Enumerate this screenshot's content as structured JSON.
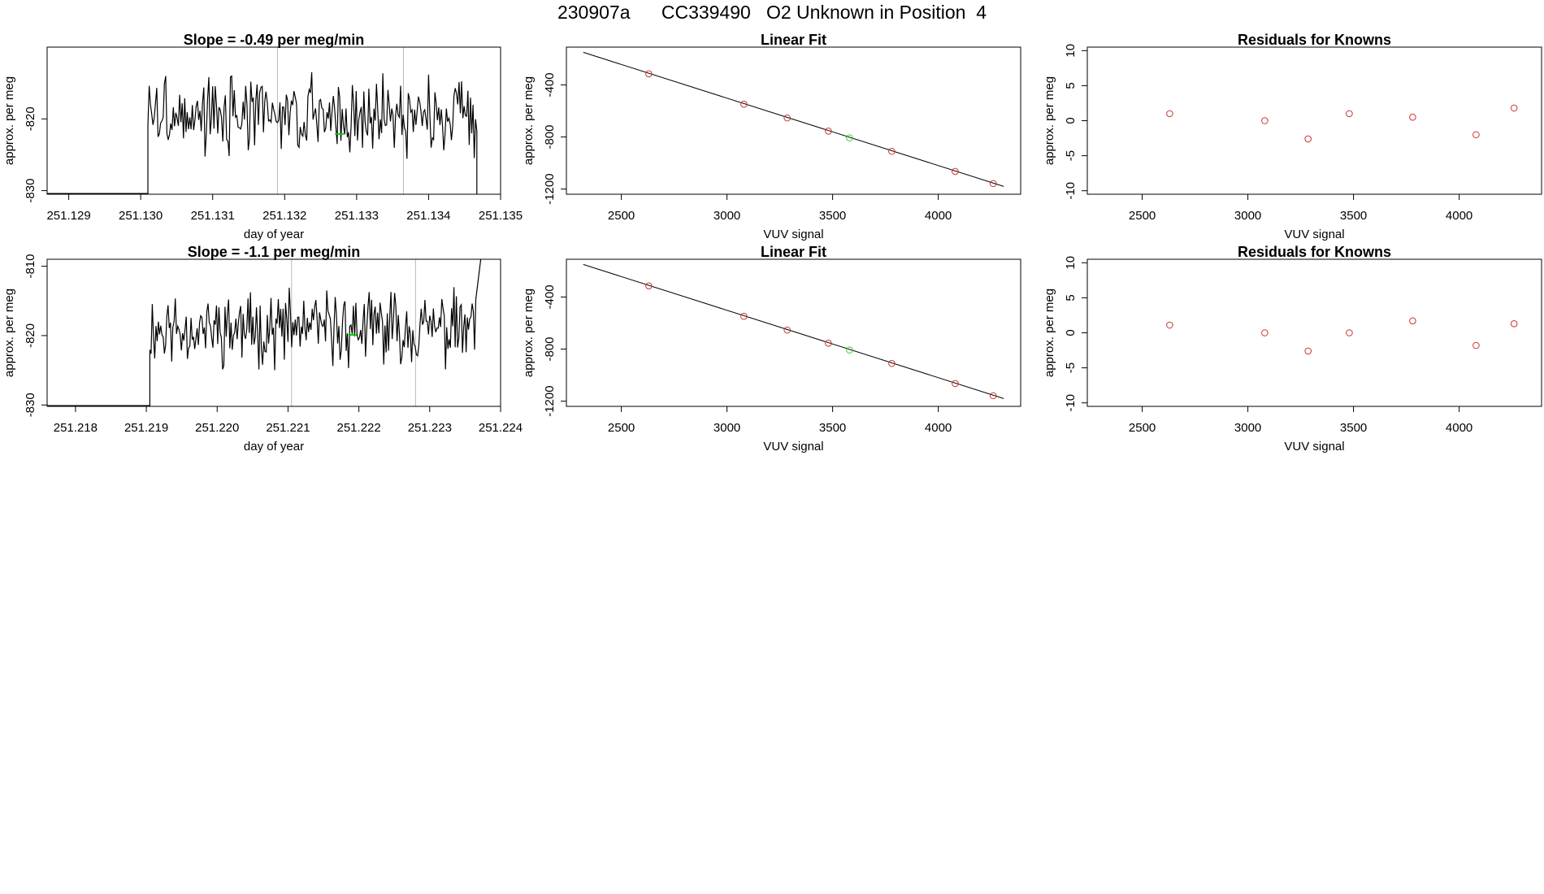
{
  "figure": {
    "title": "230907a      CC339490   O2 Unknown in Position  4"
  },
  "chart_data": [
    {
      "type": "line",
      "panel": "row1-timeseries",
      "title": "Slope =  -0.49  per meg/min",
      "xlabel": "day of year",
      "ylabel": "approx. per meg",
      "xlim": [
        251.1287,
        251.135
      ],
      "ylim": [
        -830.5,
        -810.0
      ],
      "xticks": [
        "251.129",
        "251.130",
        "251.131",
        "251.132",
        "251.133",
        "251.134",
        "251.135"
      ],
      "yticks": [
        "-830",
        "-820"
      ],
      "vlines": [
        251.1319,
        251.13365
      ],
      "noise_seed": 3,
      "series": [
        {
          "name": "signal",
          "color": "#000000",
          "x_start": 251.1301,
          "x_end": 251.13467,
          "n": 260,
          "base": -819.5,
          "noise": 4.5,
          "drop": {
            "x": 251.13467,
            "y": -833
          }
        },
        {
          "name": "unknown-mean",
          "color": "#00cc00",
          "x": [
            251.1327,
            251.13282
          ],
          "y": [
            -822.1,
            -822.1
          ]
        }
      ]
    },
    {
      "type": "scatter",
      "panel": "row1-fit",
      "title": "Linear Fit",
      "xlabel": "VUV signal",
      "ylabel": "approx. per meg",
      "xlim": [
        2240,
        4390
      ],
      "ylim": [
        -1240,
        -110
      ],
      "xticks": [
        "2500",
        "3000",
        "3500",
        "4000"
      ],
      "yticks": [
        "-1200",
        "-800",
        "-400"
      ],
      "fit_line": {
        "x": [
          2320,
          4310
        ],
        "y": [
          -150,
          -1180
        ]
      },
      "series": [
        {
          "name": "knowns",
          "color": "#cc3333",
          "x": [
            2630,
            3080,
            3285,
            3480,
            3780,
            4080,
            4260
          ],
          "y": [
            -315,
            -548,
            -654,
            -755,
            -910,
            -1065,
            -1158
          ]
        },
        {
          "name": "unknown",
          "color": "#33cc33",
          "x": [
            3580
          ],
          "y": [
            -807
          ]
        }
      ]
    },
    {
      "type": "scatter",
      "panel": "row1-residuals",
      "title": "Residuals for Knowns",
      "xlabel": "VUV signal",
      "ylabel": "approx. per meg",
      "xlim": [
        2240,
        4390
      ],
      "ylim": [
        -10.5,
        10.5
      ],
      "xticks": [
        "2500",
        "3000",
        "3500",
        "4000"
      ],
      "yticks": [
        "-10",
        "-5",
        "0",
        "5",
        "10"
      ],
      "series": [
        {
          "name": "residuals",
          "color": "#cc3333",
          "x": [
            2630,
            3080,
            3285,
            3480,
            3780,
            4080,
            4260
          ],
          "y": [
            1.0,
            0.0,
            -2.6,
            1.0,
            0.5,
            -2.0,
            1.8
          ]
        }
      ]
    },
    {
      "type": "line",
      "panel": "row2-timeseries",
      "title": "Slope =  -1.1  per meg/min",
      "xlabel": "day of year",
      "ylabel": "approx. per meg",
      "xlim": [
        251.2176,
        251.224
      ],
      "ylim": [
        -830.2,
        -809.0
      ],
      "xticks": [
        "251.218",
        "251.219",
        "251.220",
        "251.221",
        "251.222",
        "251.223",
        "251.224"
      ],
      "yticks": [
        "-830",
        "-820",
        "-810"
      ],
      "vlines": [
        251.22105,
        251.2228
      ],
      "noise_seed": 11,
      "series": [
        {
          "name": "signal",
          "color": "#000000",
          "x_start": 251.21905,
          "x_end": 251.22365,
          "n": 270,
          "base": -819.0,
          "noise": 4.5,
          "rise": {
            "x": 251.22372,
            "y": -809
          }
        },
        {
          "name": "unknown-mean",
          "color": "#00cc00",
          "x": [
            251.22185,
            251.22197
          ],
          "y": [
            -819.9,
            -819.9
          ]
        }
      ]
    },
    {
      "type": "scatter",
      "panel": "row2-fit",
      "title": "Linear Fit",
      "xlabel": "VUV signal",
      "ylabel": "approx. per meg",
      "xlim": [
        2240,
        4390
      ],
      "ylim": [
        -1240,
        -110
      ],
      "xticks": [
        "2500",
        "3000",
        "3500",
        "4000"
      ],
      "yticks": [
        "-1200",
        "-800",
        "-400"
      ],
      "fit_line": {
        "x": [
          2320,
          4310
        ],
        "y": [
          -150,
          -1180
        ]
      },
      "series": [
        {
          "name": "knowns",
          "color": "#cc3333",
          "x": [
            2630,
            3080,
            3285,
            3480,
            3780,
            4080,
            4260
          ],
          "y": [
            -315,
            -548,
            -654,
            -755,
            -910,
            -1065,
            -1158
          ]
        },
        {
          "name": "unknown",
          "color": "#33cc33",
          "x": [
            3580
          ],
          "y": [
            -807
          ]
        }
      ]
    },
    {
      "type": "scatter",
      "panel": "row2-residuals",
      "title": "Residuals for Knowns",
      "xlabel": "VUV signal",
      "ylabel": "approx. per meg",
      "xlim": [
        2240,
        4390
      ],
      "ylim": [
        -10.5,
        10.5
      ],
      "xticks": [
        "2500",
        "3000",
        "3500",
        "4000"
      ],
      "yticks": [
        "-10",
        "-5",
        "0",
        "5",
        "10"
      ],
      "series": [
        {
          "name": "residuals",
          "color": "#cc3333",
          "x": [
            2630,
            3080,
            3285,
            3480,
            3780,
            4080,
            4260
          ],
          "y": [
            1.1,
            0.0,
            -2.6,
            0.0,
            1.7,
            -1.8,
            1.3
          ]
        }
      ]
    }
  ]
}
